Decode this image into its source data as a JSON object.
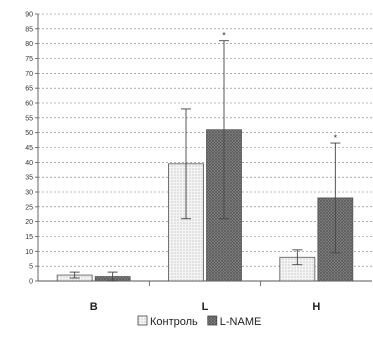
{
  "chart_data": {
    "type": "bar",
    "categories": [
      "B",
      "L",
      "H"
    ],
    "series": [
      {
        "name": "Контроль",
        "values": [
          2,
          39.5,
          8
        ],
        "error": [
          1,
          18.5,
          2.5
        ],
        "fill": "dots",
        "color": "#e8e8e8"
      },
      {
        "name": "L-NAME",
        "values": [
          1.5,
          51,
          28
        ],
        "error": [
          1.5,
          30,
          18.5
        ],
        "fill": "crosshatch",
        "color": "#808080"
      }
    ],
    "significance": [
      {
        "category": "L",
        "series": "L-NAME",
        "mark": "*"
      },
      {
        "category": "H",
        "series": "L-NAME",
        "mark": "*"
      }
    ],
    "yticks": [
      0,
      5,
      10,
      15,
      20,
      25,
      30,
      35,
      40,
      45,
      50,
      55,
      60,
      65,
      70,
      75,
      80,
      85,
      90
    ],
    "ylim": [
      0,
      90
    ],
    "grid": true,
    "grid_style": "dashed",
    "legend_position": "bottom-center",
    "title": "",
    "xlabel": "",
    "ylabel": ""
  }
}
